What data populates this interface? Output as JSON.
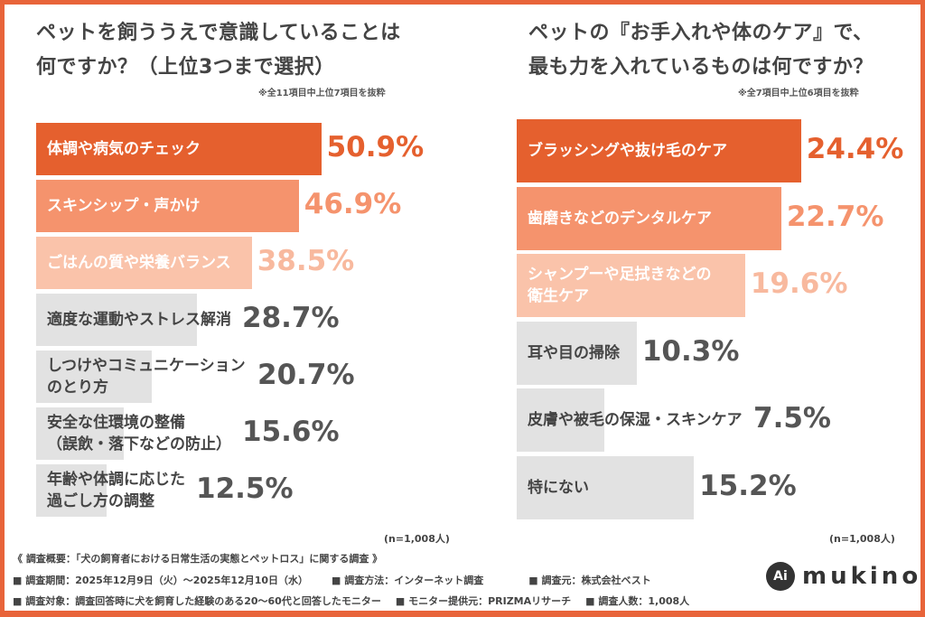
{
  "colors": {
    "border": "#E8643A",
    "tiers": [
      "#E5602E",
      "#F5936D",
      "#FAC3AA",
      "#E2E2E2"
    ],
    "value_tiers": [
      "#E5602E",
      "#F5936D",
      "#F8B99E",
      "#555555"
    ]
  },
  "chart_data": [
    {
      "type": "bar",
      "orientation": "horizontal",
      "title_lines": [
        "ペットを飼ううえで意識していることは",
        "何ですか？（上位3つまで選択）"
      ],
      "note": "※全11項目中上位7項目を抜粋",
      "unit": "%",
      "sample": "(n=1,008人)",
      "categories": [
        [
          "体調や病気のチェック"
        ],
        [
          "スキンシップ・声かけ"
        ],
        [
          "ごはんの質や栄養バランス"
        ],
        [
          "適度な運動やストレス解消"
        ],
        [
          "しつけやコミュニケーション",
          "のとり方"
        ],
        [
          "安全な住環境の整備",
          "（誤飲・落下などの防止）"
        ],
        [
          "年齢や体調に応じた",
          "過ごし方の調整"
        ]
      ],
      "values": [
        50.9,
        46.9,
        38.5,
        28.7,
        20.7,
        15.6,
        12.5
      ],
      "value_labels": [
        "50.9%",
        "46.9%",
        "38.5%",
        "28.7%",
        "20.7%",
        "15.6%",
        "12.5%"
      ]
    },
    {
      "type": "bar",
      "orientation": "horizontal",
      "title_lines": [
        "ペットの『お手入れや体のケア』で、",
        "最も力を入れているものは何ですか？"
      ],
      "note": "※全7項目中上位6項目を抜粋",
      "unit": "%",
      "sample": "(n=1,008人)",
      "categories": [
        [
          "ブラッシングや抜け毛のケア"
        ],
        [
          "歯磨きなどのデンタルケア"
        ],
        [
          "シャンプーや足拭きなどの",
          "衛生ケア"
        ],
        [
          "耳や目の掃除"
        ],
        [
          "皮膚や被毛の保湿・スキンケア"
        ],
        [
          "特にない"
        ]
      ],
      "values": [
        24.4,
        22.7,
        19.6,
        10.3,
        7.5,
        15.2
      ],
      "value_labels": [
        "24.4%",
        "22.7%",
        "19.6%",
        "10.3%",
        "7.5%",
        "15.2%"
      ]
    }
  ],
  "footer": {
    "heading": "《 調査概要：「犬の飼育者における日常生活の実態とペットロス」に関する調査 》",
    "line1": [
      "■ 調査期間：2025年12月9日（火）～2025年12月10日（水）",
      "■ 調査方法：インターネット調査",
      "■ 調査元：株式会社ベスト"
    ],
    "line2": [
      "■ 調査対象：調査回答時に犬を飼育した経験のある20～60代と回答したモニター",
      "■ モニター提供元：PRIZMAリサーチ",
      "■ 調査人数：1,008人"
    ]
  },
  "logo": {
    "text": "mukino",
    "mark": "Ai"
  }
}
